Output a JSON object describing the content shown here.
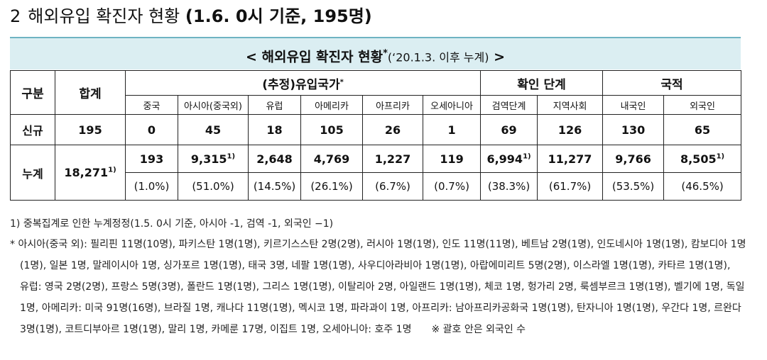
{
  "title": {
    "number": "2",
    "text": "해외유입 확진자 현황",
    "bold": "(1.6. 0시 기준, 195명)"
  },
  "banner": {
    "text": "< 해외유입 확진자 현황",
    "star": "*",
    "sub": "(‘20.1.3. 이후 누계)",
    "end": " >"
  },
  "table": {
    "h_category": "구분",
    "h_total": "합계",
    "h_countries": "(추정)유입국가",
    "h_countries_star": "*",
    "h_stage": "확인 단계",
    "h_nationality": "국적",
    "sub_headers": [
      "중국",
      "아시아(중국외)",
      "유럽",
      "아메리카",
      "아프리카",
      "오세아니아",
      "검역단계",
      "지역사회",
      "내국인",
      "외국인"
    ],
    "row_new": {
      "label": "신규",
      "total": "195",
      "values": [
        "0",
        "45",
        "18",
        "105",
        "26",
        "1",
        "69",
        "126",
        "130",
        "65"
      ]
    },
    "row_cum": {
      "label": "누계",
      "total": "18,271",
      "total_note": "1)",
      "values": [
        {
          "v": "193",
          "n": ""
        },
        {
          "v": "9,315",
          "n": "1)"
        },
        {
          "v": "2,648",
          "n": ""
        },
        {
          "v": "4,769",
          "n": ""
        },
        {
          "v": "1,227",
          "n": ""
        },
        {
          "v": "119",
          "n": ""
        },
        {
          "v": "6,994",
          "n": "1)"
        },
        {
          "v": "11,277",
          "n": ""
        },
        {
          "v": "9,766",
          "n": ""
        },
        {
          "v": "8,505",
          "n": "1)"
        }
      ],
      "pcts": [
        "(1.0%)",
        "(51.0%)",
        "(14.5%)",
        "(26.1%)",
        "(6.7%)",
        "(0.7%)",
        "(38.3%)",
        "(61.7%)",
        "(53.5%)",
        "(46.5%)"
      ]
    }
  },
  "notes": {
    "n1": "1) 중복집계로 인한 누계정정(1.5. 0시 기준, 아시아 -1, 검역 -1, 외국인 −1)",
    "n2": "* 아시아(중국 외): 필리핀 11명(10명), 파키스탄 1명(1명), 키르기스스탄 2명(2명), 러시아 1명(1명), 인도 11명(11명), 베트남 2명(1명), 인도네시아 1명(1명), 캄보디아 1명(1명), 일본 1명, 말레이시아 1명, 싱가포르 1명(1명), 태국 3명, 네팔 1명(1명), 사우디아라비아 1명(1명), 아랍에미리트 5명(2명), 이스라엘 1명(1명), 카타르 1명(1명), 유럽: 영국 2명(2명), 프랑스 5명(3명), 폴란드 1명(1명), 그리스 1명(1명), 이탈리아 2명, 아일랜드 1명(1명), 체코 1명, 헝가리 2명, 룩셈부르크 1명(1명), 벨기에 1명, 독일 1명, 아메리카: 미국 91명(16명), 브라질 1명, 캐나다 11명(1명), 멕시코 1명, 파라과이 1명, 아프리카: 남아프리카공화국 1명(1명), 탄자니아 1명(1명), 우간다 1명, 르완다 3명(1명), 코트디부아르 1명(1명), 말리 1명, 카메룬 17명, 이집트 1명, 오세아니아: 호주 1명",
    "n3": "※ 괄호 안은 외국인 수"
  }
}
